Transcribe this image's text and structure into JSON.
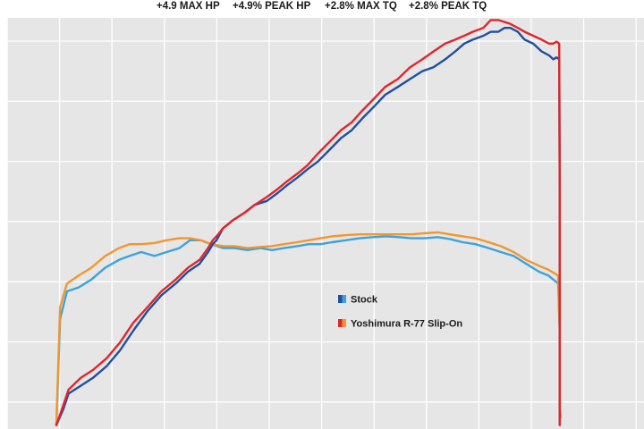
{
  "headline": {
    "max_hp": "+4.9 MAX HP",
    "peak_hp": "+4.9% PEAK HP",
    "max_tq": "+2.8% MAX TQ",
    "peak_tq": "+2.8% PEAK TQ"
  },
  "colors": {
    "stock_dark": "#1f4fa0",
    "stock_light": "#3aa3dd",
    "yoshimura_red": "#e0262a",
    "yoshimura_orange": "#f2962f",
    "plot_background": "#e6e6e6",
    "grid": "#ffffff"
  },
  "chart_data": {
    "type": "line",
    "title": "",
    "xlabel": "",
    "ylabel": "",
    "xlim": [
      0,
      100
    ],
    "ylim": [
      0,
      100
    ],
    "grid": true,
    "legend_position": "center-right",
    "legend": [
      {
        "label": "Stock",
        "swatch": [
          "#1f4fa0",
          "#3aa3dd"
        ]
      },
      {
        "label": "Yoshimura R-77 Slip-On",
        "swatch": [
          "#e0262a",
          "#f2962f"
        ]
      }
    ],
    "series": [
      {
        "name": "Stock",
        "metric": "horsepower",
        "color": "#1f4fa0",
        "points": [
          [
            0,
            1
          ],
          [
            1.3,
            5
          ],
          [
            2.3,
            9
          ],
          [
            4.6,
            11
          ],
          [
            6.9,
            13
          ],
          [
            9.5,
            16
          ],
          [
            12,
            20
          ],
          [
            14.5,
            25
          ],
          [
            17.2,
            30
          ],
          [
            19.8,
            34
          ],
          [
            22.5,
            37
          ],
          [
            24.8,
            40
          ],
          [
            27,
            42
          ],
          [
            28.6,
            45
          ],
          [
            29.5,
            47
          ],
          [
            30.2,
            48
          ],
          [
            31.4,
            51
          ],
          [
            33.2,
            53
          ],
          [
            35.5,
            55
          ],
          [
            37.4,
            57
          ],
          [
            39.7,
            58
          ],
          [
            41.7,
            60
          ],
          [
            43.5,
            62
          ],
          [
            45.5,
            64
          ],
          [
            47.3,
            66
          ],
          [
            49.3,
            68
          ],
          [
            51.5,
            71
          ],
          [
            53.7,
            74
          ],
          [
            55.7,
            76
          ],
          [
            57.7,
            79
          ],
          [
            59.9,
            82
          ],
          [
            62,
            85
          ],
          [
            64.4,
            87
          ],
          [
            66.7,
            89
          ],
          [
            69,
            91
          ],
          [
            71.1,
            92
          ],
          [
            73.3,
            94
          ],
          [
            75.2,
            96
          ],
          [
            76.9,
            98
          ],
          [
            78.5,
            99
          ],
          [
            80.5,
            100
          ],
          [
            81.9,
            101
          ],
          [
            83.3,
            101
          ],
          [
            84.5,
            102
          ],
          [
            85.6,
            102
          ],
          [
            87,
            101
          ],
          [
            88.3,
            99
          ],
          [
            89.9,
            98
          ],
          [
            91.5,
            96
          ],
          [
            92.9,
            95
          ],
          [
            93.7,
            94
          ],
          [
            94.3,
            94.5
          ],
          [
            94.8,
            94
          ],
          [
            94.9,
            60
          ],
          [
            94.9,
            10
          ],
          [
            94.9,
            1
          ]
        ]
      },
      {
        "name": "Yoshimura R-77 Slip-On",
        "metric": "horsepower",
        "color": "#e0262a",
        "points": [
          [
            0,
            1
          ],
          [
            1.3,
            6
          ],
          [
            2.3,
            10
          ],
          [
            4.6,
            13
          ],
          [
            6.9,
            15
          ],
          [
            9.5,
            18
          ],
          [
            12,
            22
          ],
          [
            14.5,
            27
          ],
          [
            17.2,
            31
          ],
          [
            19.8,
            35
          ],
          [
            22.5,
            38
          ],
          [
            24.8,
            41
          ],
          [
            27,
            43
          ],
          [
            28.6,
            46
          ],
          [
            29.5,
            48
          ],
          [
            30.2,
            49
          ],
          [
            31.4,
            51
          ],
          [
            33.2,
            53
          ],
          [
            35.5,
            55
          ],
          [
            37.4,
            57
          ],
          [
            39.7,
            59
          ],
          [
            41.7,
            61
          ],
          [
            43.5,
            63
          ],
          [
            45.5,
            65
          ],
          [
            47.3,
            67
          ],
          [
            49.3,
            70
          ],
          [
            51.5,
            73
          ],
          [
            53.7,
            76
          ],
          [
            55.7,
            78
          ],
          [
            57.7,
            81
          ],
          [
            59.9,
            84
          ],
          [
            62,
            87
          ],
          [
            64.4,
            89
          ],
          [
            66.7,
            92
          ],
          [
            69,
            94
          ],
          [
            71.1,
            96
          ],
          [
            73.3,
            98
          ],
          [
            75.2,
            99
          ],
          [
            76.9,
            100
          ],
          [
            78.5,
            101
          ],
          [
            80.5,
            102
          ],
          [
            81.9,
            104
          ],
          [
            83.3,
            104
          ],
          [
            84.5,
            103.5
          ],
          [
            85.6,
            103
          ],
          [
            87,
            102
          ],
          [
            88.3,
            101
          ],
          [
            89.9,
            100
          ],
          [
            91.5,
            99
          ],
          [
            92.9,
            98
          ],
          [
            93.7,
            98
          ],
          [
            94.3,
            98.5
          ],
          [
            94.8,
            98
          ],
          [
            94.9,
            60
          ],
          [
            94.9,
            10
          ],
          [
            94.9,
            1
          ]
        ]
      },
      {
        "name": "Stock",
        "metric": "torque",
        "color": "#3aa3dd",
        "points": [
          [
            0,
            1
          ],
          [
            0.7,
            28
          ],
          [
            2,
            35
          ],
          [
            4.2,
            36
          ],
          [
            6.6,
            38
          ],
          [
            9.2,
            41
          ],
          [
            11.8,
            43
          ],
          [
            13.8,
            44
          ],
          [
            16,
            45
          ],
          [
            18.5,
            44
          ],
          [
            20.8,
            45
          ],
          [
            23.2,
            46
          ],
          [
            25.2,
            48
          ],
          [
            27.2,
            48
          ],
          [
            29.2,
            47
          ],
          [
            31.5,
            46
          ],
          [
            33.6,
            46
          ],
          [
            36,
            45.5
          ],
          [
            38.5,
            46
          ],
          [
            40.7,
            45.5
          ],
          [
            42.9,
            46
          ],
          [
            45.4,
            46.5
          ],
          [
            47.6,
            47
          ],
          [
            49.8,
            47
          ],
          [
            52,
            47.5
          ],
          [
            54.6,
            48
          ],
          [
            57.2,
            48.5
          ],
          [
            59.7,
            48.8
          ],
          [
            62.2,
            49
          ],
          [
            64.6,
            48.8
          ],
          [
            67,
            48.5
          ],
          [
            69.5,
            48.5
          ],
          [
            71.9,
            48.8
          ],
          [
            74.2,
            48.3
          ],
          [
            76.6,
            47.5
          ],
          [
            79,
            47
          ],
          [
            81.5,
            46
          ],
          [
            83.8,
            45
          ],
          [
            86.2,
            44
          ],
          [
            88.6,
            42
          ],
          [
            91,
            40
          ],
          [
            92.8,
            39
          ],
          [
            94.6,
            37
          ],
          [
            94.9,
            25
          ],
          [
            94.9,
            5
          ],
          [
            95.1,
            3
          ]
        ]
      },
      {
        "name": "Yoshimura R-77 Slip-On",
        "metric": "torque",
        "color": "#f2962f",
        "points": [
          [
            0,
            1
          ],
          [
            0.7,
            31
          ],
          [
            2,
            37
          ],
          [
            4.2,
            39
          ],
          [
            6.6,
            41
          ],
          [
            9.2,
            44
          ],
          [
            11.8,
            46
          ],
          [
            13.8,
            47
          ],
          [
            16,
            47
          ],
          [
            18.5,
            47.3
          ],
          [
            20.8,
            48
          ],
          [
            23.2,
            48.5
          ],
          [
            25.2,
            48.5
          ],
          [
            27.2,
            48
          ],
          [
            29.2,
            47
          ],
          [
            31.5,
            46.5
          ],
          [
            33.6,
            46.5
          ],
          [
            36,
            46
          ],
          [
            38.5,
            46.3
          ],
          [
            40.7,
            46.5
          ],
          [
            42.9,
            47
          ],
          [
            45.4,
            47.5
          ],
          [
            47.6,
            48
          ],
          [
            49.8,
            48.5
          ],
          [
            52,
            49
          ],
          [
            54.6,
            49.3
          ],
          [
            57.2,
            49.5
          ],
          [
            59.7,
            49.5
          ],
          [
            62.2,
            49.5
          ],
          [
            64.6,
            49.5
          ],
          [
            67,
            49.5
          ],
          [
            69.5,
            49.8
          ],
          [
            71.9,
            50
          ],
          [
            74.2,
            49.5
          ],
          [
            76.6,
            49
          ],
          [
            79,
            48.5
          ],
          [
            81.5,
            47.5
          ],
          [
            83.8,
            46.5
          ],
          [
            86.2,
            45
          ],
          [
            88.6,
            43
          ],
          [
            91,
            41.5
          ],
          [
            92.8,
            40.5
          ],
          [
            94.6,
            39
          ],
          [
            94.9,
            25
          ],
          [
            94.9,
            5
          ],
          [
            95.1,
            3
          ]
        ]
      }
    ]
  }
}
